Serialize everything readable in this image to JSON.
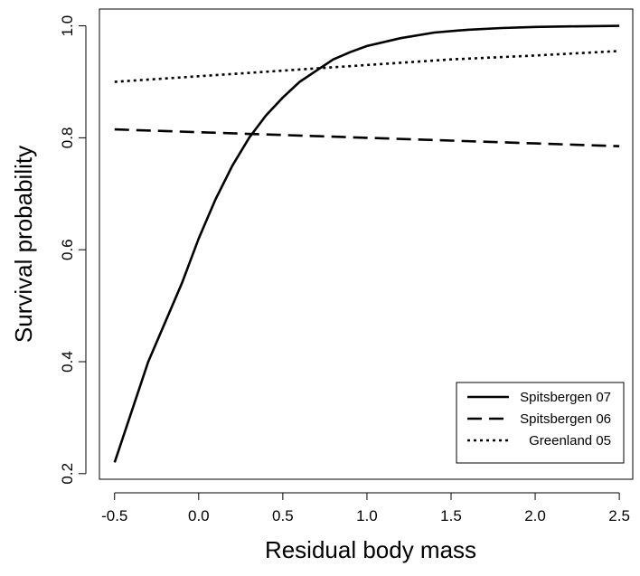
{
  "chart_data": {
    "type": "line",
    "title": "",
    "xlabel": "Residual body mass",
    "ylabel": "Survival probability",
    "xlim": [
      -0.59,
      2.58
    ],
    "ylim": [
      0.19,
      1.03
    ],
    "xticks": [
      -0.5,
      0.0,
      0.5,
      1.0,
      1.5,
      2.0,
      2.5
    ],
    "xtick_labels": [
      "-0.5",
      "0.0",
      "0.5",
      "1.0",
      "1.5",
      "2.0",
      "2.5"
    ],
    "yticks": [
      0.2,
      0.4,
      0.6,
      0.8,
      1.0
    ],
    "ytick_labels": [
      "0.2",
      "0.4",
      "0.6",
      "0.8",
      "1.0"
    ],
    "grid": false,
    "legend_position": "bottom-right",
    "series": [
      {
        "name": "Spitsbergen 07",
        "line_style": "solid",
        "color": "#000000",
        "x": [
          -0.5,
          -0.4,
          -0.3,
          -0.2,
          -0.1,
          0.0,
          0.1,
          0.2,
          0.3,
          0.4,
          0.5,
          0.6,
          0.7,
          0.8,
          0.9,
          1.0,
          1.2,
          1.4,
          1.6,
          1.8,
          2.0,
          2.2,
          2.5
        ],
        "y": [
          0.22,
          0.31,
          0.4,
          0.47,
          0.54,
          0.62,
          0.69,
          0.75,
          0.8,
          0.84,
          0.872,
          0.9,
          0.92,
          0.94,
          0.953,
          0.964,
          0.978,
          0.988,
          0.993,
          0.996,
          0.998,
          0.999,
          1.0
        ]
      },
      {
        "name": "Spitsbergen 06",
        "line_style": "dashed",
        "color": "#000000",
        "x": [
          -0.5,
          0.0,
          0.5,
          1.0,
          1.5,
          2.0,
          2.5
        ],
        "y": [
          0.815,
          0.81,
          0.805,
          0.8,
          0.795,
          0.79,
          0.785
        ]
      },
      {
        "name": "Greenland 05",
        "line_style": "dotted",
        "color": "#000000",
        "x": [
          -0.5,
          0.0,
          0.5,
          1.0,
          1.5,
          2.0,
          2.5
        ],
        "y": [
          0.9,
          0.91,
          0.92,
          0.93,
          0.94,
          0.947,
          0.955
        ]
      }
    ]
  }
}
